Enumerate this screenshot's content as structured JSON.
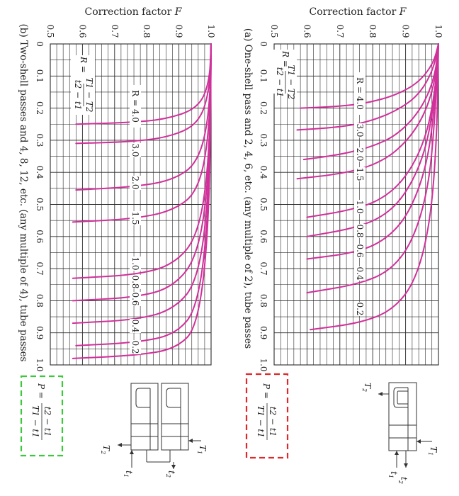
{
  "chart_data": [
    {
      "type": "line",
      "panel": "a",
      "title": "Correction factor F",
      "caption": "(a) One-shell pass and 2, 4, 6, etc. (any multiple of 2), tube passes",
      "xlabel": "P",
      "ylabel": "Correction factor F",
      "xlim": [
        0,
        1.0
      ],
      "ylim": [
        0.5,
        1.0
      ],
      "grid": true,
      "x_ticks": [
        "0",
        "0.1",
        "0.2",
        "0.3",
        "0.4",
        "0.5",
        "0.6",
        "0.7",
        "0.8",
        "0.9",
        "1.0"
      ],
      "y_ticks": [
        "0.5",
        "0.6",
        "0.7",
        "0.8",
        "0.9",
        "1.0"
      ],
      "r_formula": {
        "lhs": "R =",
        "num": "T1 − T2",
        "den": "t2 − t1"
      },
      "p_formula": {
        "lhs": "P =",
        "num": "t2 − t1",
        "den": "T1 − t1"
      },
      "series": [
        {
          "name": "R = 4.0",
          "label": "R = 4.0",
          "x": [
            0,
            0.06,
            0.12,
            0.16,
            0.185,
            0.195,
            0.2
          ],
          "y": [
            1.0,
            0.985,
            0.94,
            0.87,
            0.78,
            0.69,
            0.58
          ]
        },
        {
          "name": "R = 3.0",
          "label": "3.0",
          "x": [
            0,
            0.08,
            0.16,
            0.21,
            0.245,
            0.26,
            0.268
          ],
          "y": [
            1.0,
            0.985,
            0.94,
            0.87,
            0.78,
            0.69,
            0.57
          ]
        },
        {
          "name": "R = 2.0",
          "label": "2.0",
          "x": [
            0,
            0.1,
            0.2,
            0.28,
            0.32,
            0.345,
            0.36
          ],
          "y": [
            1.0,
            0.99,
            0.95,
            0.88,
            0.8,
            0.7,
            0.59
          ]
        },
        {
          "name": "R = 1.5",
          "label": "1.5",
          "x": [
            0,
            0.12,
            0.24,
            0.33,
            0.38,
            0.405,
            0.42
          ],
          "y": [
            1.0,
            0.99,
            0.95,
            0.88,
            0.8,
            0.7,
            0.57
          ]
        },
        {
          "name": "R = 1.0",
          "label": "1.0",
          "x": [
            0,
            0.15,
            0.3,
            0.42,
            0.49,
            0.52,
            0.54
          ],
          "y": [
            1.0,
            0.99,
            0.96,
            0.9,
            0.82,
            0.72,
            0.6
          ]
        },
        {
          "name": "R = 0.8",
          "label": "0.8",
          "x": [
            0,
            0.16,
            0.34,
            0.47,
            0.54,
            0.575,
            0.6
          ],
          "y": [
            1.0,
            0.99,
            0.96,
            0.9,
            0.83,
            0.74,
            0.6
          ]
        },
        {
          "name": "R = 0.6",
          "label": "0.6",
          "x": [
            0,
            0.18,
            0.38,
            0.53,
            0.61,
            0.65,
            0.67
          ],
          "y": [
            1.0,
            0.99,
            0.965,
            0.91,
            0.84,
            0.75,
            0.6
          ]
        },
        {
          "name": "R = 0.4",
          "label": "0.4",
          "x": [
            0,
            0.22,
            0.45,
            0.62,
            0.71,
            0.75,
            0.775
          ],
          "y": [
            1.0,
            0.99,
            0.97,
            0.92,
            0.85,
            0.75,
            0.6
          ]
        },
        {
          "name": "R = 0.2",
          "label": "0.2",
          "x": [
            0,
            0.3,
            0.56,
            0.74,
            0.83,
            0.87,
            0.89
          ],
          "y": [
            1.0,
            0.995,
            0.975,
            0.93,
            0.86,
            0.76,
            0.61
          ]
        }
      ]
    },
    {
      "type": "line",
      "panel": "b",
      "title": "Correction factor F",
      "caption": "(b) Two-shell passes and 4, 8, 12, etc. (any multiple of 4), tube passes",
      "xlabel": "P",
      "ylabel": "Correction factor F",
      "xlim": [
        0,
        1.0
      ],
      "ylim": [
        0.5,
        1.0
      ],
      "grid": true,
      "x_ticks": [
        "0",
        "0.1",
        "0.2",
        "0.3",
        "0.4",
        "0.5",
        "0.6",
        "0.7",
        "0.8",
        "0.9",
        "1.0"
      ],
      "y_ticks": [
        "0.5",
        "0.6",
        "0.7",
        "0.8",
        "0.9",
        "1.0"
      ],
      "r_formula": {
        "lhs": "R =",
        "num": "T1 − T2",
        "den": "t2 − t1"
      },
      "p_formula": {
        "lhs": "P =",
        "num": "t2 − t1",
        "den": "T1 − t1"
      },
      "series": [
        {
          "name": "R = 4.0",
          "label": "R = 4.0",
          "x": [
            0,
            0.12,
            0.2,
            0.235,
            0.245,
            0.25
          ],
          "y": [
            1.0,
            0.995,
            0.96,
            0.86,
            0.74,
            0.58
          ]
        },
        {
          "name": "R = 3.0",
          "label": "3.0",
          "x": [
            0,
            0.15,
            0.25,
            0.29,
            0.305,
            0.31
          ],
          "y": [
            1.0,
            0.995,
            0.96,
            0.87,
            0.75,
            0.58
          ]
        },
        {
          "name": "R = 2.0",
          "label": "2.0",
          "x": [
            0,
            0.22,
            0.37,
            0.425,
            0.445,
            0.455
          ],
          "y": [
            1.0,
            0.995,
            0.96,
            0.88,
            0.76,
            0.58
          ]
        },
        {
          "name": "R = 1.5",
          "label": "1.5",
          "x": [
            0,
            0.28,
            0.46,
            0.52,
            0.545,
            0.555
          ],
          "y": [
            1.0,
            0.995,
            0.96,
            0.88,
            0.76,
            0.57
          ]
        },
        {
          "name": "R = 1.0",
          "label": "1.0",
          "x": [
            0,
            0.36,
            0.6,
            0.69,
            0.72,
            0.73
          ],
          "y": [
            1.0,
            0.995,
            0.96,
            0.88,
            0.76,
            0.57
          ]
        },
        {
          "name": "R = 0.8",
          "label": "0.8",
          "x": [
            0,
            0.4,
            0.66,
            0.76,
            0.79,
            0.8
          ],
          "y": [
            1.0,
            0.995,
            0.96,
            0.88,
            0.76,
            0.57
          ]
        },
        {
          "name": "R = 0.6",
          "label": "0.6",
          "x": [
            0,
            0.45,
            0.74,
            0.83,
            0.86,
            0.87
          ],
          "y": [
            1.0,
            0.995,
            0.96,
            0.88,
            0.76,
            0.57
          ]
        },
        {
          "name": "R = 0.4",
          "label": "0.4",
          "x": [
            0,
            0.5,
            0.82,
            0.905,
            0.93,
            0.94
          ],
          "y": [
            1.0,
            0.995,
            0.96,
            0.89,
            0.77,
            0.58
          ]
        },
        {
          "name": "R = 0.2",
          "label": "0.2",
          "x": [
            0,
            0.55,
            0.88,
            0.95,
            0.97,
            0.98
          ],
          "y": [
            1.0,
            0.995,
            0.96,
            0.89,
            0.77,
            0.57
          ]
        }
      ]
    }
  ],
  "colors": {
    "curve": "#d0309a",
    "grid": "#2a2a2a",
    "box_a": "#e0272a",
    "box_b": "#3cc83c",
    "text": "#222222"
  },
  "diagram_labels": {
    "T1": "T1",
    "T2": "T2",
    "t1": "t1",
    "t2": "t2"
  }
}
